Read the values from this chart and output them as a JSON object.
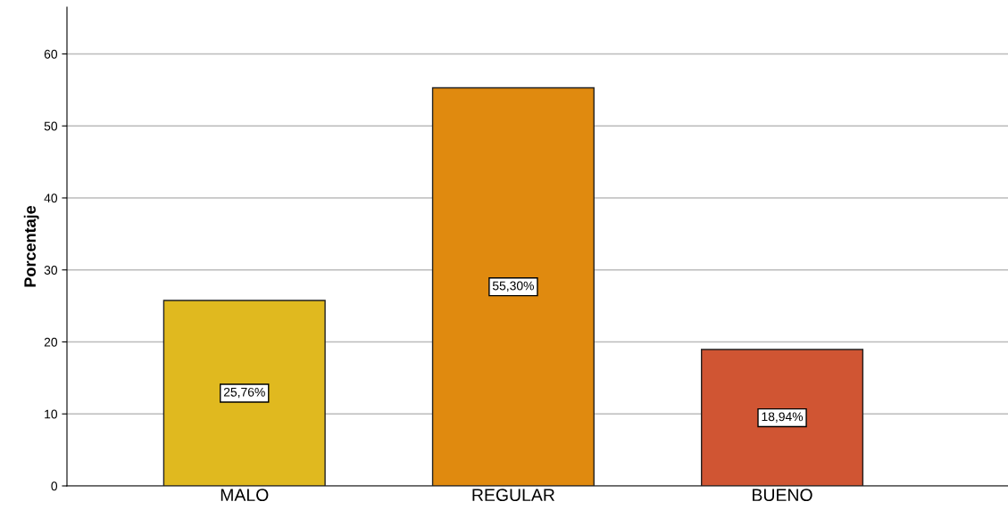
{
  "chart_data": {
    "type": "bar",
    "ylabel": "Porcentaje",
    "categories": [
      "MALO",
      "REGULAR",
      "BUENO"
    ],
    "values": [
      25.76,
      55.3,
      18.94
    ],
    "colors": [
      "#e0b91f",
      "#e08a0f",
      "#d05533"
    ],
    "value_labels": [
      "25,76%",
      "55,30%",
      "18,94%"
    ],
    "ylim": [
      0,
      66.5
    ],
    "yticks": [
      0,
      10,
      20,
      30,
      40,
      50,
      60
    ],
    "grid": "y",
    "legend": false
  }
}
